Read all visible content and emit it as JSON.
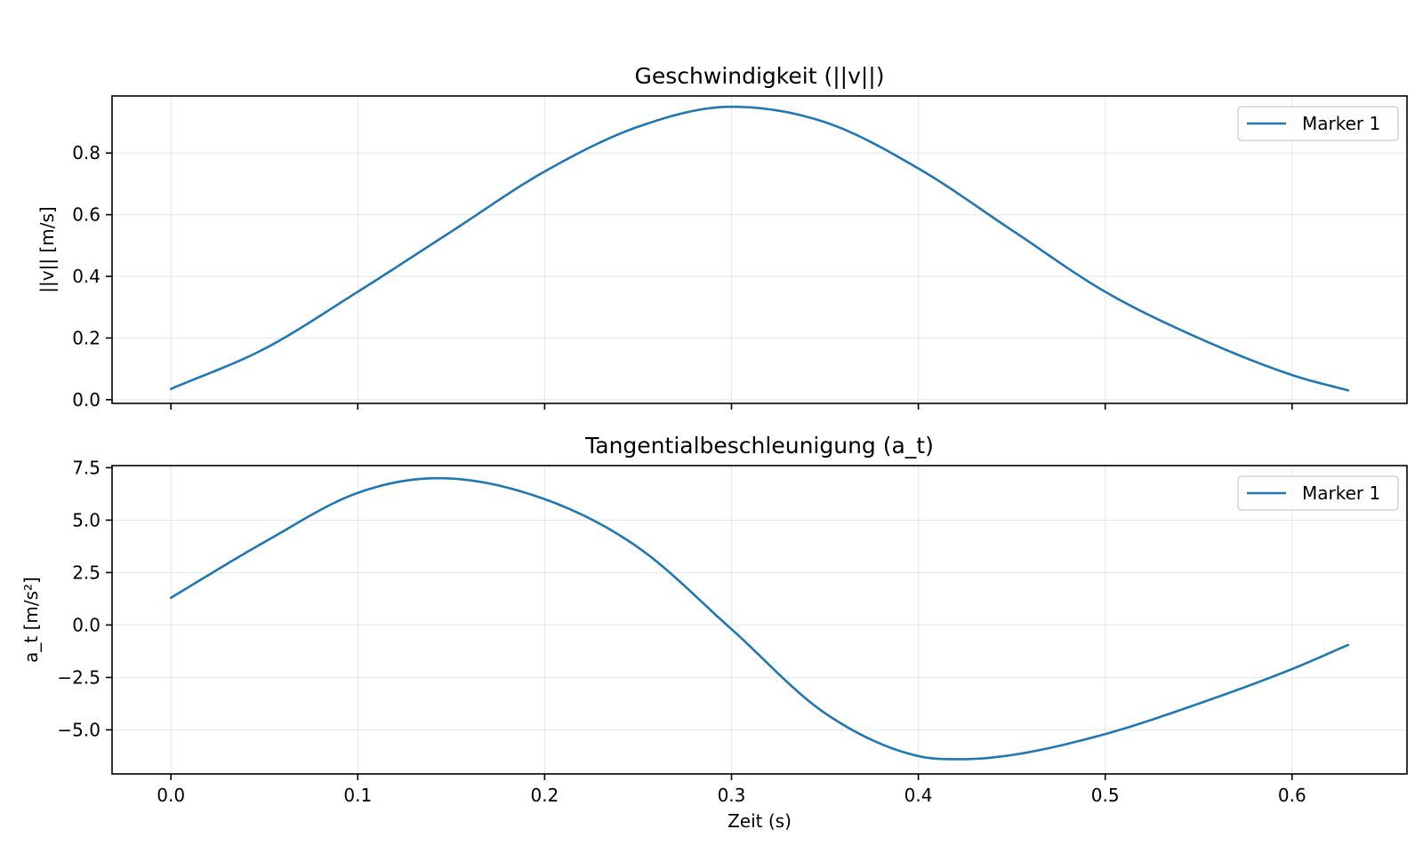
{
  "chart_data": [
    {
      "type": "line",
      "title": "Geschwindigkeit (||v||)",
      "xlabel": "",
      "ylabel": "||v|| [m/s]",
      "xlim": [
        -0.0315,
        0.6615
      ],
      "ylim": [
        -0.012,
        0.985
      ],
      "xticks": [
        0.0,
        0.1,
        0.2,
        0.3,
        0.4,
        0.5,
        0.6
      ],
      "xtick_labels": [],
      "yticks": [
        0.0,
        0.2,
        0.4,
        0.6,
        0.8
      ],
      "ytick_labels": [
        "0.0",
        "0.2",
        "0.4",
        "0.6",
        "0.8"
      ],
      "grid": true,
      "legend_position": "top-right",
      "color": "#1f77b4",
      "series": [
        {
          "name": "Marker 1",
          "x": [
            0.0,
            0.05,
            0.1,
            0.15,
            0.2,
            0.25,
            0.3,
            0.35,
            0.4,
            0.45,
            0.5,
            0.55,
            0.6,
            0.63
          ],
          "y": [
            0.035,
            0.165,
            0.35,
            0.545,
            0.74,
            0.885,
            0.95,
            0.9,
            0.75,
            0.55,
            0.35,
            0.2,
            0.08,
            0.03
          ]
        }
      ]
    },
    {
      "type": "line",
      "title": "Tangentialbeschleunigung (a_t)",
      "xlabel": "Zeit (s)",
      "ylabel": "a_t [m/s²]",
      "xlim": [
        -0.0315,
        0.6615
      ],
      "ylim": [
        -7.1,
        7.6
      ],
      "xticks": [
        0.0,
        0.1,
        0.2,
        0.3,
        0.4,
        0.5,
        0.6
      ],
      "xtick_labels": [
        "0.0",
        "0.1",
        "0.2",
        "0.3",
        "0.4",
        "0.5",
        "0.6"
      ],
      "yticks": [
        -5.0,
        -2.5,
        0.0,
        2.5,
        5.0,
        7.5
      ],
      "ytick_labels": [
        "−5.0",
        "−2.5",
        "0.0",
        "2.5",
        "5.0",
        "7.5"
      ],
      "grid": true,
      "legend_position": "top-right",
      "color": "#1f77b4",
      "series": [
        {
          "name": "Marker 1",
          "x": [
            0.0,
            0.05,
            0.1,
            0.143,
            0.2,
            0.25,
            0.3,
            0.35,
            0.4,
            0.422,
            0.45,
            0.5,
            0.55,
            0.6,
            0.63
          ],
          "y": [
            1.3,
            3.95,
            6.3,
            7.0,
            6.0,
            3.7,
            -0.2,
            -4.2,
            -6.25,
            -6.4,
            -6.2,
            -5.2,
            -3.75,
            -2.1,
            -0.95
          ]
        }
      ]
    }
  ]
}
